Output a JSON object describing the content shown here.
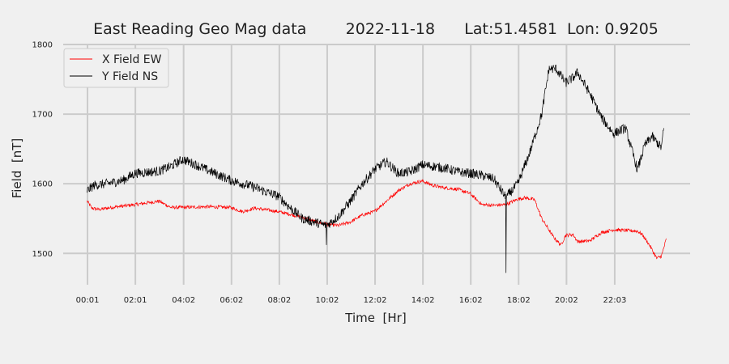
{
  "chart_data": {
    "type": "line",
    "title": "East Reading Geo Mag data        2022-11-18      Lat:51.4581  Lon: 0.9205",
    "xlabel": "Time  [Hr]",
    "ylabel": "Field  [nT]",
    "x_range_hr": [
      -1.0,
      25.2
    ],
    "ylim": [
      1455,
      1800
    ],
    "yticks": [
      1500,
      1600,
      1700,
      1800
    ],
    "xticks": [
      {
        "hr": 0.0167,
        "label": "00:01"
      },
      {
        "hr": 2.0167,
        "label": "02:01"
      },
      {
        "hr": 4.0333,
        "label": "04:02"
      },
      {
        "hr": 6.0333,
        "label": "06:02"
      },
      {
        "hr": 8.0333,
        "label": "08:02"
      },
      {
        "hr": 10.0333,
        "label": "10:02"
      },
      {
        "hr": 12.0333,
        "label": "12:02"
      },
      {
        "hr": 14.0333,
        "label": "14:02"
      },
      {
        "hr": 16.0333,
        "label": "16:02"
      },
      {
        "hr": 18.0333,
        "label": "18:02"
      },
      {
        "hr": 20.0333,
        "label": "20:02"
      },
      {
        "hr": 22.05,
        "label": "22:03"
      }
    ],
    "grid": true,
    "legend_position": "top-left",
    "series": [
      {
        "name": "X Field EW",
        "color": "#ff0000",
        "noise": 2.5,
        "x": [
          0,
          0.2,
          0.5,
          1,
          2,
          3,
          3.5,
          4,
          5,
          6,
          6.5,
          7,
          8,
          8.5,
          9,
          9.5,
          10,
          10.5,
          11,
          11.5,
          12,
          12.5,
          13,
          13.5,
          14,
          14.5,
          15,
          15.5,
          16,
          16.5,
          17,
          17.5,
          18,
          18.3,
          18.7,
          19,
          19.5,
          19.8,
          20,
          20.3,
          20.5,
          21,
          21.5,
          22,
          22.5,
          23,
          23.2,
          23.5,
          23.8,
          24,
          24.2
        ],
        "y": [
          1575,
          1565,
          1563,
          1566,
          1570,
          1575,
          1566,
          1566,
          1567,
          1566,
          1560,
          1565,
          1560,
          1556,
          1552,
          1546,
          1542,
          1540,
          1545,
          1555,
          1560,
          1575,
          1590,
          1600,
          1604,
          1597,
          1594,
          1592,
          1586,
          1570,
          1569,
          1570,
          1578,
          1580,
          1577,
          1550,
          1523,
          1512,
          1526,
          1527,
          1517,
          1518,
          1530,
          1534,
          1533,
          1532,
          1527,
          1512,
          1493,
          1496,
          1520
        ]
      },
      {
        "name": "Y Field NS",
        "color": "#000000",
        "noise": 7,
        "x": [
          0,
          0.3,
          0.8,
          1.5,
          2,
          3,
          3.5,
          4,
          4.5,
          5,
          6,
          7,
          7.5,
          8,
          8.5,
          9,
          9.5,
          10,
          10.5,
          11,
          11.5,
          12,
          12.5,
          13,
          13.5,
          14,
          14.5,
          15,
          15.5,
          16,
          16.5,
          17,
          17.5,
          18,
          18.5,
          19,
          19.3,
          19.6,
          20,
          20.3,
          20.5,
          20.8,
          21,
          21.5,
          22,
          22.5,
          23,
          23.3,
          23.6,
          24,
          24.1
        ],
        "y": [
          1590,
          1598,
          1600,
          1605,
          1615,
          1618,
          1625,
          1635,
          1628,
          1620,
          1605,
          1595,
          1588,
          1582,
          1565,
          1550,
          1545,
          1540,
          1553,
          1575,
          1600,
          1620,
          1632,
          1615,
          1617,
          1627,
          1625,
          1622,
          1617,
          1615,
          1612,
          1607,
          1580,
          1600,
          1645,
          1700,
          1765,
          1765,
          1745,
          1752,
          1760,
          1742,
          1730,
          1695,
          1672,
          1680,
          1620,
          1655,
          1668,
          1652,
          1680
        ]
      }
    ]
  }
}
